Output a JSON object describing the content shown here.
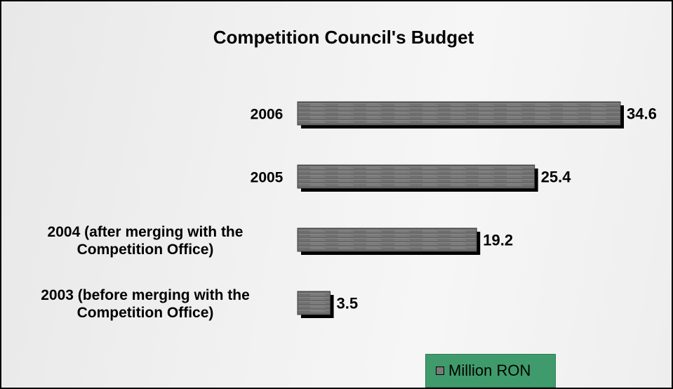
{
  "chart_data": {
    "type": "bar",
    "orientation": "horizontal",
    "title": "Competition Council's Budget",
    "categories": [
      [
        "2006"
      ],
      [
        "2005"
      ],
      [
        "2004 (after merging with the",
        "Competition Office)"
      ],
      [
        "2003 (before merging with the",
        "Competition Office)"
      ]
    ],
    "series": [
      {
        "name": "Million RON",
        "values": [
          34.6,
          25.4,
          19.2,
          3.5
        ]
      }
    ],
    "value_labels": [
      "34.6",
      "25.4",
      "19.2",
      "3.5"
    ],
    "xlim": [
      0,
      34.6
    ],
    "grid": false,
    "legend_position": "bottom",
    "colors": {
      "bar": "#6b6b6b",
      "bar_shadow": "#000000",
      "legend_bg": "#3f9b6b"
    }
  }
}
